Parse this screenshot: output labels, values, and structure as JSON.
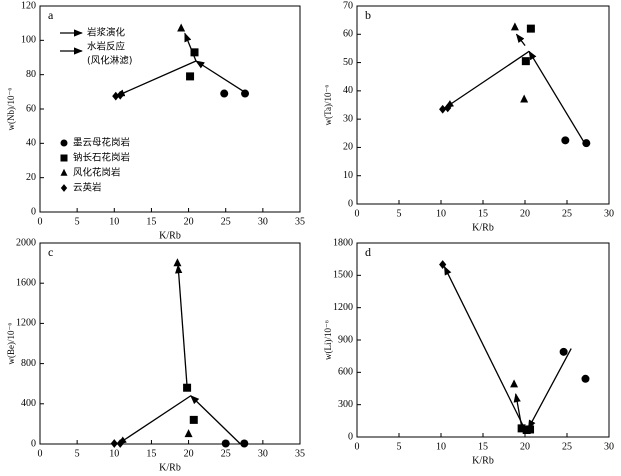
{
  "chart_data": [
    {
      "type": "scatter",
      "panel_label": "a",
      "xlabel": "K/Rb",
      "ylabel": "w(Nb)/10⁻⁶",
      "xlim": [
        0,
        35
      ],
      "xticks": [
        0,
        5,
        10,
        15,
        20,
        25,
        30,
        35
      ],
      "ylim": [
        0,
        120
      ],
      "yticks": [
        0,
        20,
        40,
        60,
        80,
        100,
        120
      ],
      "arrow_legend": [
        "岩浆演化",
        "水岩反应",
        "(风化淋滤)"
      ],
      "series": [
        {
          "name": "墨云母花岗岩",
          "marker": "circle",
          "color": "#000000",
          "x": [
            24.8,
            27.6
          ],
          "y": [
            69,
            69
          ]
        },
        {
          "name": "钠长石花岗岩",
          "marker": "square",
          "color": "#000000",
          "x": [
            20.8,
            20.2
          ],
          "y": [
            93,
            79
          ]
        },
        {
          "name": "风化花岗岩",
          "marker": "triangle",
          "color": "#000000",
          "x": [
            19
          ],
          "y": [
            107
          ]
        },
        {
          "name": "云英岩",
          "marker": "diamond",
          "color": "#000000",
          "x": [
            10.2,
            10.8
          ],
          "y": [
            67.5,
            68
          ]
        }
      ]
    },
    {
      "type": "scatter",
      "panel_label": "b",
      "xlabel": "K/Rb",
      "ylabel": "w(Ta)/10⁻⁶",
      "xlim": [
        0,
        30
      ],
      "xticks": [
        0,
        5,
        10,
        15,
        20,
        25,
        30
      ],
      "ylim": [
        0,
        70
      ],
      "yticks": [
        0,
        10,
        20,
        30,
        40,
        50,
        60,
        70
      ],
      "series": [
        {
          "marker": "circle",
          "color": "#000000",
          "x": [
            24.8,
            27.3
          ],
          "y": [
            22.5,
            21.5
          ]
        },
        {
          "marker": "square",
          "color": "#000000",
          "x": [
            20.7,
            20.1
          ],
          "y": [
            62,
            50.5
          ]
        },
        {
          "marker": "triangle",
          "color": "#000000",
          "x": [
            18.8,
            19.9
          ],
          "y": [
            62.5,
            37
          ]
        },
        {
          "marker": "diamond",
          "color": "#000000",
          "x": [
            10.2,
            10.8
          ],
          "y": [
            33.5,
            34
          ]
        }
      ]
    },
    {
      "type": "scatter",
      "panel_label": "c",
      "xlabel": "K/Rb",
      "ylabel": "w(Be)/10⁻⁶",
      "xlim": [
        0,
        35
      ],
      "xticks": [
        0,
        5,
        10,
        15,
        20,
        25,
        30,
        35
      ],
      "ylim": [
        0,
        2000
      ],
      "yticks": [
        0,
        400,
        800,
        1200,
        1600,
        2000
      ],
      "series": [
        {
          "marker": "circle",
          "color": "#000000",
          "x": [
            25,
            27.5
          ],
          "y": [
            5,
            5
          ]
        },
        {
          "marker": "square",
          "color": "#000000",
          "x": [
            19.8,
            20.7
          ],
          "y": [
            560,
            240
          ]
        },
        {
          "marker": "triangle",
          "color": "#000000",
          "x": [
            18.5,
            20
          ],
          "y": [
            1800,
            100
          ]
        },
        {
          "marker": "diamond",
          "color": "#000000",
          "x": [
            10,
            10.8
          ],
          "y": [
            5,
            5
          ]
        }
      ]
    },
    {
      "type": "scatter",
      "panel_label": "d",
      "xlabel": "K/Rb",
      "ylabel": "w(Li)/10⁻⁶",
      "xlim": [
        0,
        30
      ],
      "xticks": [
        0,
        5,
        10,
        15,
        20,
        25,
        30
      ],
      "ylim": [
        0,
        1800
      ],
      "yticks": [
        0,
        300,
        600,
        900,
        1200,
        1500,
        1800
      ],
      "series": [
        {
          "marker": "circle",
          "color": "#000000",
          "x": [
            24.6,
            27.2
          ],
          "y": [
            790,
            540
          ]
        },
        {
          "marker": "square",
          "color": "#000000",
          "x": [
            19.6,
            20.2,
            20.6
          ],
          "y": [
            80,
            65,
            70
          ]
        },
        {
          "marker": "triangle",
          "color": "#000000",
          "x": [
            18.7
          ],
          "y": [
            490
          ]
        },
        {
          "marker": "diamond",
          "color": "#000000",
          "x": [
            10.2
          ],
          "y": [
            1600
          ]
        }
      ]
    }
  ]
}
